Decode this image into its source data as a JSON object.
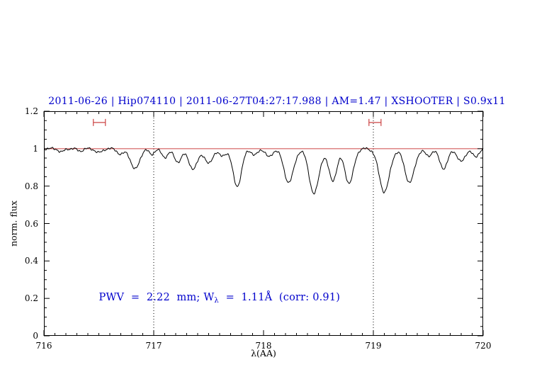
{
  "header": {
    "title": "2011-06-26 | Hip074110 | 2011-06-27T04:27:17.988 | AM=1.47 | XSHOOTER | S0.9x11"
  },
  "colors": {
    "title_blue": "#0000cc",
    "annotation_blue": "#0000cc",
    "line_red": "#cc4444",
    "spectrum_black": "#000000",
    "guide_black": "#000000",
    "axis_black": "#000000"
  },
  "chart_data": {
    "type": "line",
    "title": "2011-06-26 | Hip074110 | 2011-06-27T04:27:17.988 | AM=1.47 | XSHOOTER | S0.9x11",
    "xlabel": "λ(AA)",
    "ylabel": "norm. flux",
    "xlim": [
      716,
      720
    ],
    "ylim": [
      0,
      1.2
    ],
    "grid": false,
    "x_ticks": [
      {
        "value": 716,
        "label": "716"
      },
      {
        "value": 717,
        "label": "717"
      },
      {
        "value": 718,
        "label": "718"
      },
      {
        "value": 719,
        "label": "719"
      },
      {
        "value": 720,
        "label": "720"
      }
    ],
    "y_ticks": [
      {
        "value": 0,
        "label": "0"
      },
      {
        "value": 0.2,
        "label": "0.2"
      },
      {
        "value": 0.4,
        "label": "0.4"
      },
      {
        "value": 0.6,
        "label": "0.6"
      },
      {
        "value": 0.8,
        "label": "0.8"
      },
      {
        "value": 1,
        "label": "1"
      },
      {
        "value": 1.2,
        "label": "1.2"
      }
    ],
    "x_minor_step": 0.1,
    "y_minor_step": 0.05,
    "continuum_level": 1.0,
    "guide_lines_x": [
      717,
      719
    ],
    "range_markers": [
      {
        "x1": 716.45,
        "x2": 716.56,
        "y": 1.14
      },
      {
        "x1": 718.96,
        "x2": 719.07,
        "y": 1.14
      }
    ],
    "annotation": {
      "pre": "PWV  =  2.22  mm; W",
      "sub": "λ",
      "post": "  =  1.11Å  (corr: 0.91)",
      "x": 716.5,
      "y": 0.2
    },
    "sampling_step": 0.005,
    "noise": [
      {
        "amp": 0.004,
        "freq": 9.1,
        "phase": 0.3
      },
      {
        "amp": 0.003,
        "freq": 23.7,
        "phase": 1.7
      },
      {
        "amp": 0.002,
        "freq": 41.3,
        "phase": 0.9
      }
    ],
    "absorption_lines": [
      {
        "center": 716.16,
        "depth": 0.018,
        "sigma": 0.025
      },
      {
        "center": 716.33,
        "depth": 0.012,
        "sigma": 0.025
      },
      {
        "center": 716.5,
        "depth": 0.022,
        "sigma": 0.03
      },
      {
        "center": 716.7,
        "depth": 0.03,
        "sigma": 0.03
      },
      {
        "center": 716.83,
        "depth": 0.11,
        "sigma": 0.04
      },
      {
        "center": 716.98,
        "depth": 0.03,
        "sigma": 0.025
      },
      {
        "center": 717.1,
        "depth": 0.045,
        "sigma": 0.03
      },
      {
        "center": 717.22,
        "depth": 0.07,
        "sigma": 0.035
      },
      {
        "center": 717.36,
        "depth": 0.11,
        "sigma": 0.04
      },
      {
        "center": 717.5,
        "depth": 0.08,
        "sigma": 0.035
      },
      {
        "center": 717.62,
        "depth": 0.04,
        "sigma": 0.03
      },
      {
        "center": 717.76,
        "depth": 0.2,
        "sigma": 0.04
      },
      {
        "center": 717.92,
        "depth": 0.035,
        "sigma": 0.028
      },
      {
        "center": 718.05,
        "depth": 0.045,
        "sigma": 0.03
      },
      {
        "center": 718.23,
        "depth": 0.18,
        "sigma": 0.045
      },
      {
        "center": 718.46,
        "depth": 0.24,
        "sigma": 0.045
      },
      {
        "center": 718.63,
        "depth": 0.17,
        "sigma": 0.038
      },
      {
        "center": 718.78,
        "depth": 0.185,
        "sigma": 0.04
      },
      {
        "center": 719.1,
        "depth": 0.23,
        "sigma": 0.048
      },
      {
        "center": 719.33,
        "depth": 0.18,
        "sigma": 0.045
      },
      {
        "center": 719.5,
        "depth": 0.04,
        "sigma": 0.028
      },
      {
        "center": 719.64,
        "depth": 0.105,
        "sigma": 0.038
      },
      {
        "center": 719.8,
        "depth": 0.07,
        "sigma": 0.035
      },
      {
        "center": 719.93,
        "depth": 0.045,
        "sigma": 0.028
      }
    ]
  }
}
